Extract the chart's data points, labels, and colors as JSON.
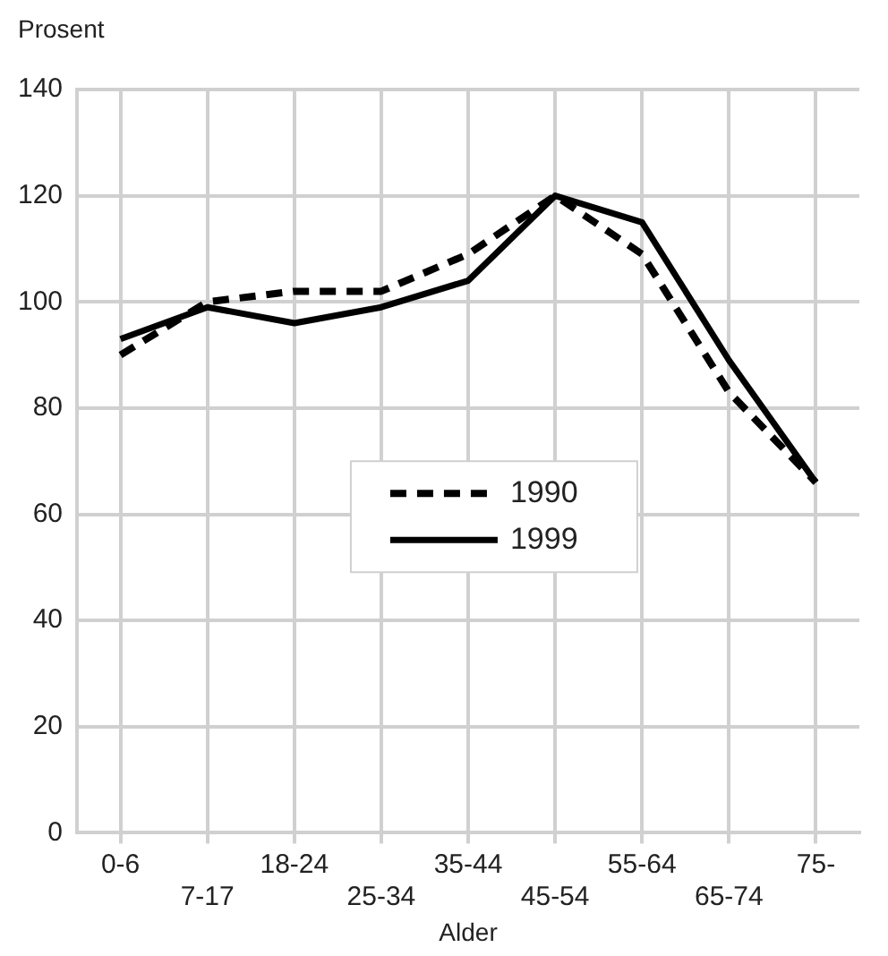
{
  "chart_data": {
    "type": "line",
    "xlabel": "Alder",
    "ylabel": "Prosent",
    "categories": [
      "0-6",
      "7-17",
      "18-24",
      "25-34",
      "35-44",
      "45-54",
      "55-64",
      "65-74",
      "75-"
    ],
    "series": [
      {
        "name": "1990",
        "color": "#000000",
        "line_style": "dashed",
        "values": [
          90,
          100,
          102,
          102,
          109,
          120,
          109,
          83,
          66
        ]
      },
      {
        "name": "1999",
        "color": "#000000",
        "line_style": "solid",
        "values": [
          93,
          99,
          96,
          99,
          104,
          120,
          115,
          89,
          66
        ]
      }
    ],
    "ylim": [
      0,
      140
    ],
    "yticks": [
      0,
      20,
      40,
      60,
      80,
      100,
      120,
      140
    ],
    "grid": true,
    "legend": "center",
    "marker": "none"
  }
}
